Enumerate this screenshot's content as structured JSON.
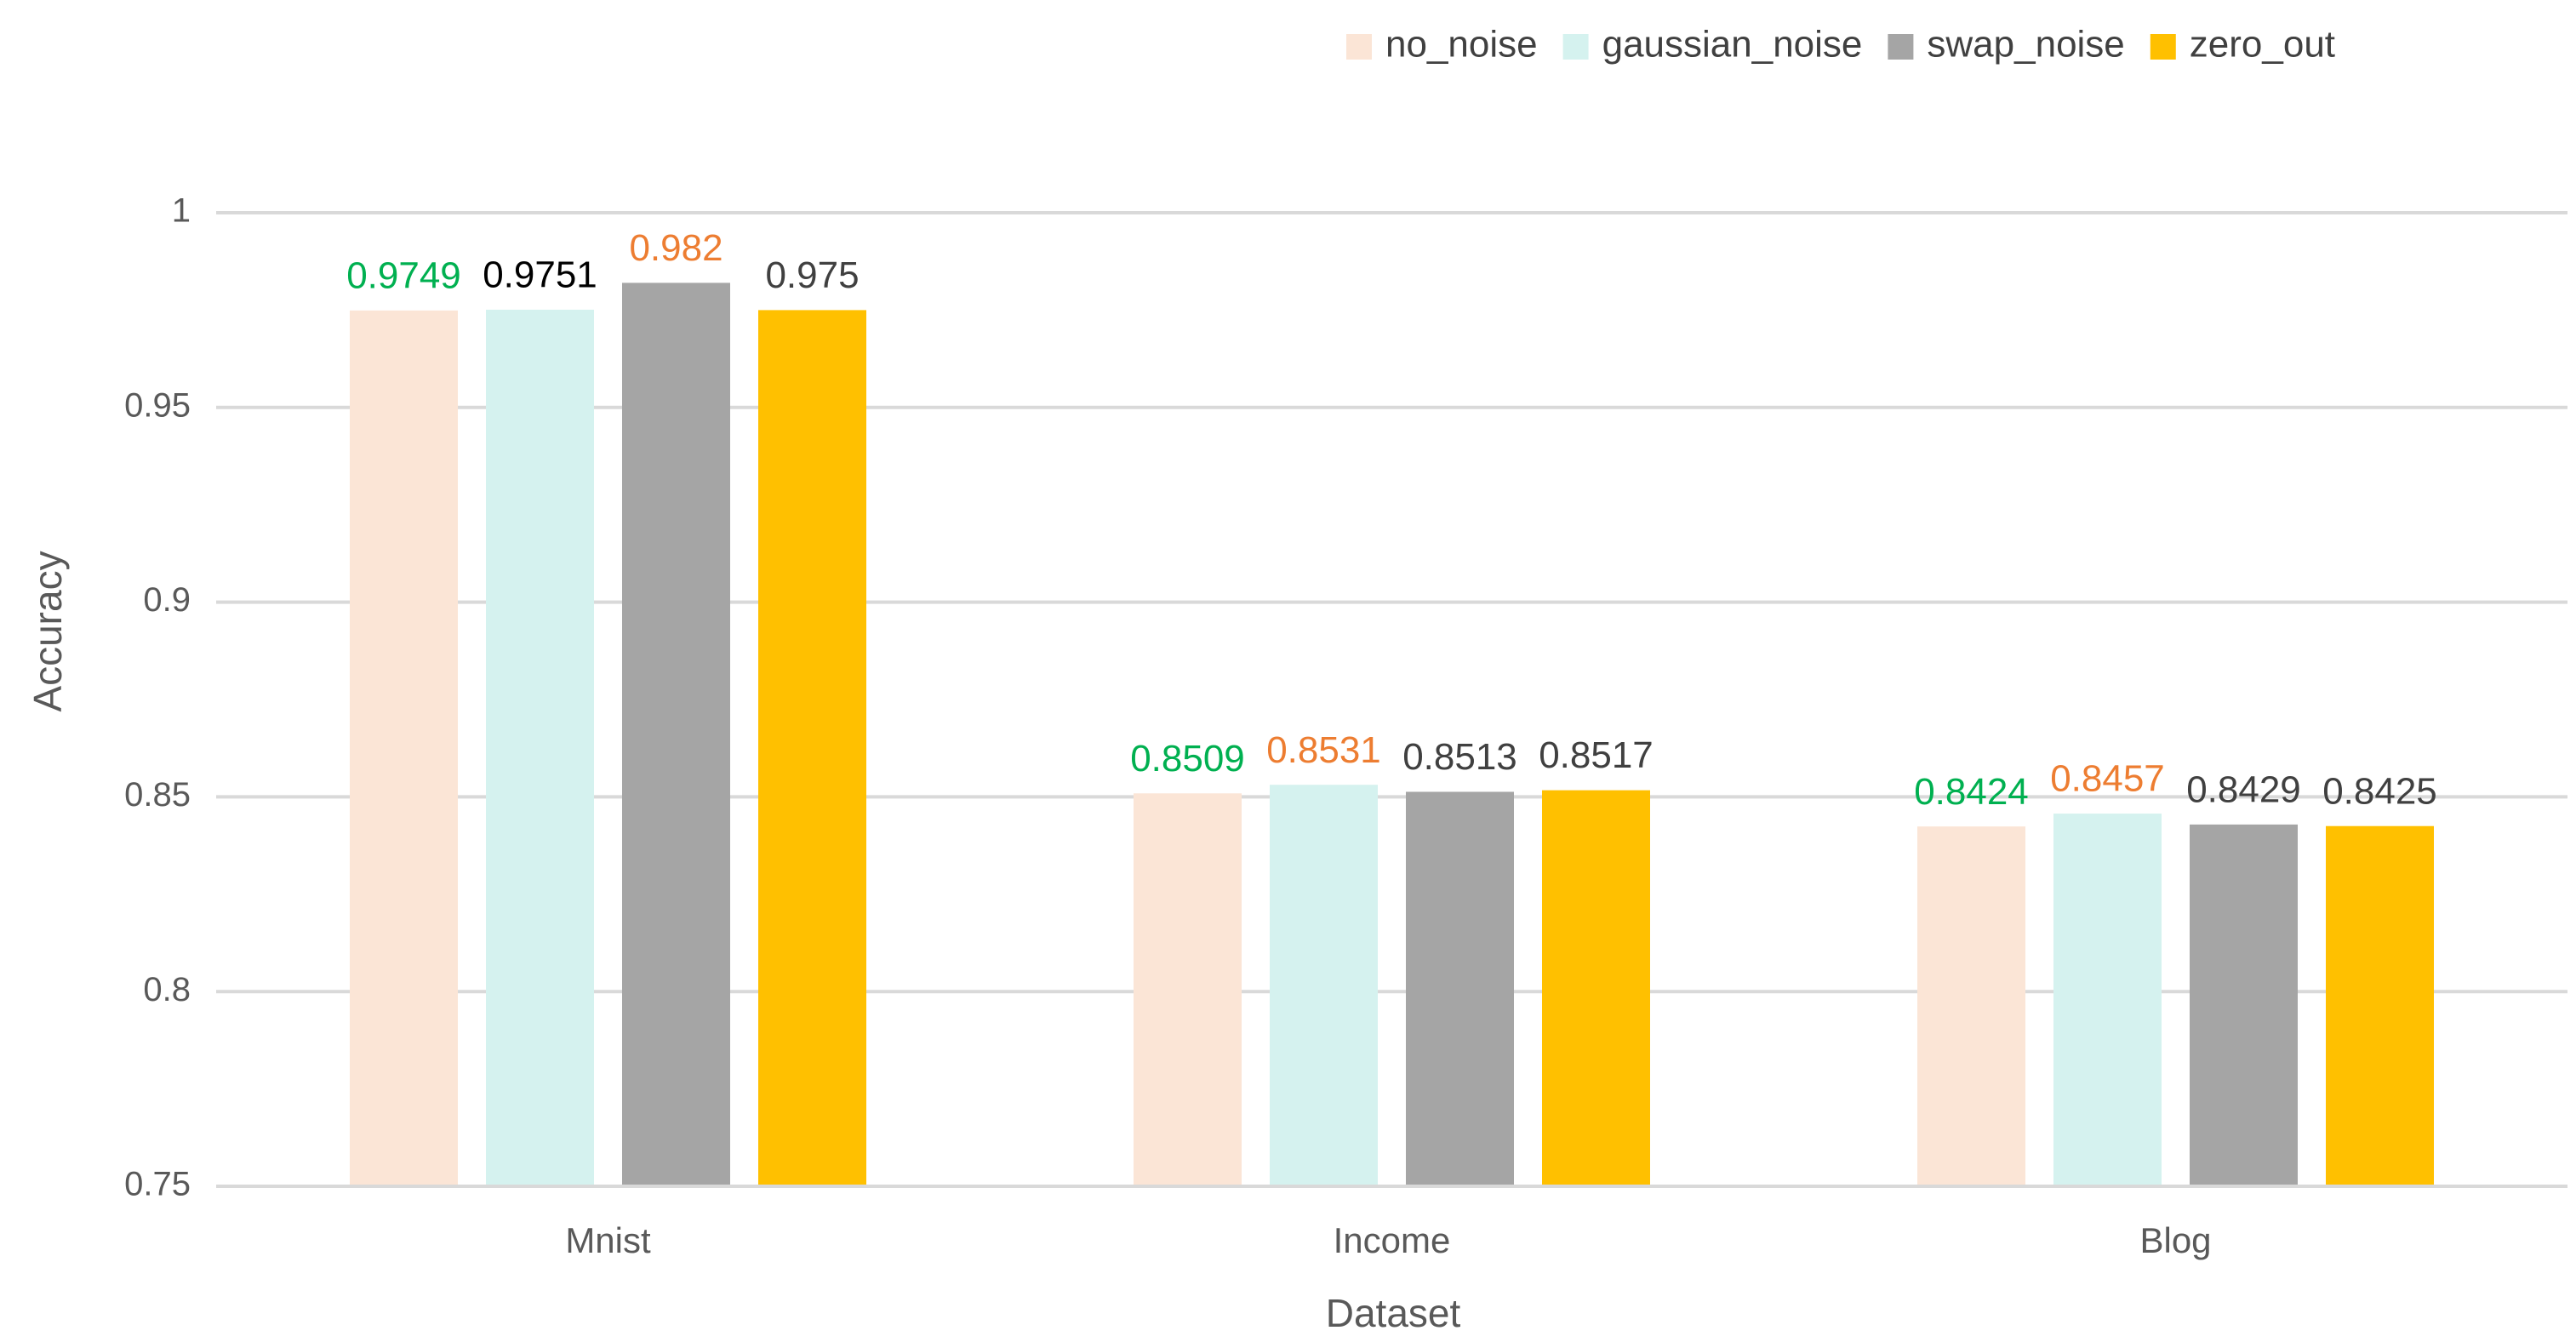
{
  "chart_data": {
    "type": "bar",
    "x_label": "Dataset",
    "y_label": "Accuracy",
    "categories": [
      "Mnist",
      "Income",
      "Blog"
    ],
    "series": [
      {
        "name": "no_noise",
        "color": "#fbe5d6",
        "values": [
          0.9749,
          0.8509,
          0.8424
        ],
        "value_label_colors": [
          "#00b050",
          "#00b050",
          "#00b050"
        ]
      },
      {
        "name": "gaussian_noise",
        "color": "#d5f2ef",
        "values": [
          0.9751,
          0.8531,
          0.8457
        ],
        "value_label_colors": [
          "#000000",
          "#ed7d31",
          "#ed7d31"
        ]
      },
      {
        "name": "swap_noise",
        "color": "#a5a5a5",
        "values": [
          0.982,
          0.8513,
          0.8429
        ],
        "value_label_colors": [
          "#ed7d31",
          "#404040",
          "#404040"
        ]
      },
      {
        "name": "zero_out",
        "color": "#ffc000",
        "values": [
          0.975,
          0.8517,
          0.8425
        ],
        "value_label_colors": [
          "#404040",
          "#404040",
          "#404040"
        ]
      }
    ],
    "ylim": [
      0.75,
      1
    ],
    "yticks": [
      0.75,
      0.8,
      0.85,
      0.9,
      0.95,
      1
    ],
    "grid": true,
    "legend": "top"
  }
}
